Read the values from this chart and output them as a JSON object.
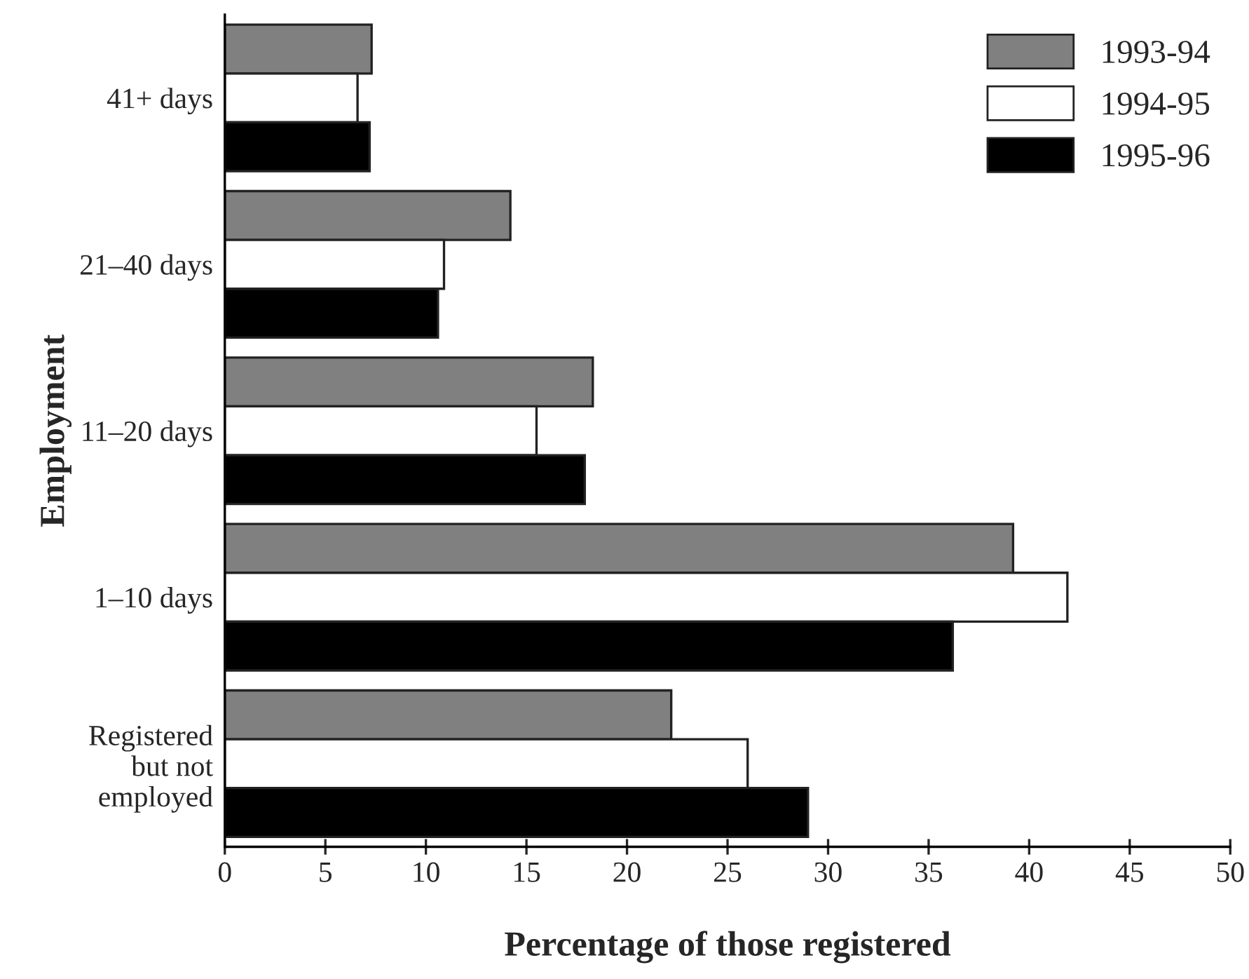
{
  "chart_data": {
    "type": "bar",
    "orientation": "horizontal",
    "xlabel": "Percentage of those registered",
    "ylabel": "Employment",
    "categories": [
      "41+ days",
      "21–40 days",
      "11–20 days",
      "1–10 days",
      "Registered\nbut not\nemployed"
    ],
    "series": [
      {
        "name": "1993-94",
        "color": "#808080",
        "values": [
          7.3,
          14.2,
          18.3,
          39.2,
          22.2
        ]
      },
      {
        "name": "1994-95",
        "color": "#ffffff",
        "values": [
          6.6,
          10.9,
          15.5,
          41.9,
          26.0
        ]
      },
      {
        "name": "1995-96",
        "color": "#000000",
        "values": [
          7.2,
          10.6,
          17.9,
          36.2,
          29.0
        ]
      }
    ],
    "xlim": [
      0,
      50
    ],
    "xticks": [
      0,
      5,
      10,
      15,
      20,
      25,
      30,
      35,
      40,
      45,
      50
    ],
    "grid": false,
    "legend": "top right"
  }
}
